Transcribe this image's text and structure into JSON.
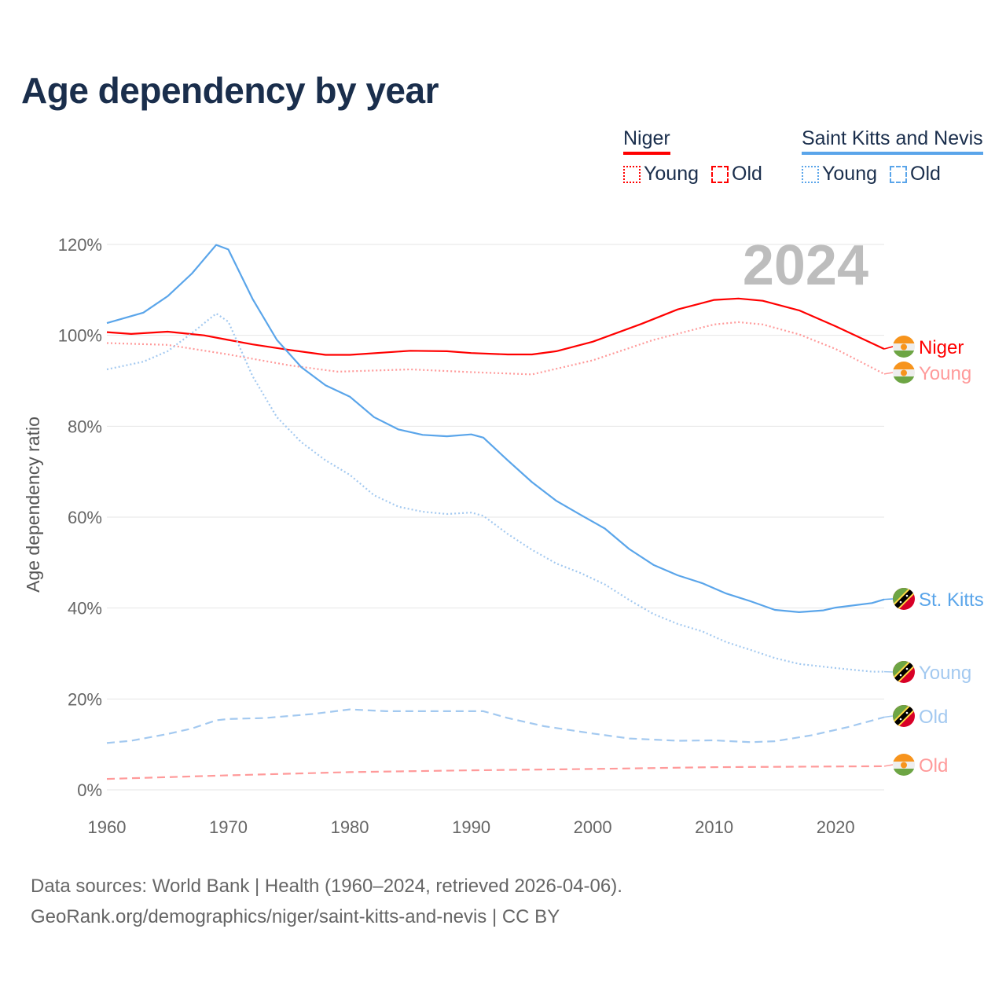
{
  "chart_data": {
    "type": "line",
    "title": "Age dependency by year",
    "xlabel": "",
    "ylabel": "Age dependency ratio",
    "xlim": [
      1960,
      2024
    ],
    "ylim": [
      0,
      120
    ],
    "xticks": [
      1960,
      1970,
      1980,
      1990,
      2000,
      2010,
      2020
    ],
    "yticks": [
      0,
      20,
      40,
      60,
      80,
      100,
      120
    ],
    "ytick_labels": [
      "0%",
      "20%",
      "40%",
      "60%",
      "80%",
      "100%",
      "120%"
    ],
    "xtick_labels": [
      "1960",
      "1970",
      "1980",
      "1990",
      "2000",
      "2010",
      "2020"
    ],
    "year_watermark": "2024",
    "grid": true,
    "legend_placement": "top-right",
    "legend": {
      "groups": [
        {
          "name": "Niger",
          "color": "#ff0000",
          "items": [
            "Young",
            "Old"
          ]
        },
        {
          "name": "Saint Kitts and Nevis",
          "color": "#5aa5ea",
          "items": [
            "Young",
            "Old"
          ]
        }
      ]
    },
    "series": [
      {
        "name": "Niger",
        "country": "niger",
        "kind": "total",
        "end_label": "Niger",
        "color": "#ff0000",
        "points": [
          [
            1960,
            100.7
          ],
          [
            1962,
            100.3
          ],
          [
            1965,
            100.8
          ],
          [
            1968,
            100
          ],
          [
            1970,
            99
          ],
          [
            1972,
            98
          ],
          [
            1975,
            96.8
          ],
          [
            1978,
            95.7
          ],
          [
            1980,
            95.7
          ],
          [
            1985,
            96.6
          ],
          [
            1988,
            96.5
          ],
          [
            1990,
            96.1
          ],
          [
            1993,
            95.8
          ],
          [
            1995,
            95.8
          ],
          [
            1997,
            96.5
          ],
          [
            2000,
            98.6
          ],
          [
            2004,
            102.5
          ],
          [
            2007,
            105.7
          ],
          [
            2010,
            107.8
          ],
          [
            2012,
            108.1
          ],
          [
            2014,
            107.6
          ],
          [
            2017,
            105.5
          ],
          [
            2020,
            102
          ],
          [
            2024,
            97
          ]
        ]
      },
      {
        "name": "Niger Young",
        "country": "niger",
        "kind": "young",
        "end_label": "Young",
        "color": "#ff9a9a",
        "points": [
          [
            1960,
            98.3
          ],
          [
            1965,
            97.9
          ],
          [
            1970,
            95.8
          ],
          [
            1975,
            93.4
          ],
          [
            1979,
            92
          ],
          [
            1985,
            92.5
          ],
          [
            1990,
            91.9
          ],
          [
            1995,
            91.4
          ],
          [
            2000,
            94.5
          ],
          [
            2005,
            99
          ],
          [
            2010,
            102.4
          ],
          [
            2012,
            102.9
          ],
          [
            2014,
            102.4
          ],
          [
            2017,
            100.2
          ],
          [
            2020,
            97
          ],
          [
            2024,
            91.5
          ]
        ]
      },
      {
        "name": "Niger Old",
        "country": "niger",
        "kind": "old",
        "end_label": "Old",
        "color": "#ff9a9a",
        "points": [
          [
            1960,
            2.4
          ],
          [
            1970,
            3.2
          ],
          [
            1980,
            3.9
          ],
          [
            1990,
            4.3
          ],
          [
            2000,
            4.6
          ],
          [
            2010,
            5.0
          ],
          [
            2024,
            5.2
          ]
        ]
      },
      {
        "name": "St. Kitts",
        "country": "skn",
        "kind": "total",
        "end_label": "St. Kitts",
        "color": "#5aa5ea",
        "points": [
          [
            1960,
            102.7
          ],
          [
            1963,
            105
          ],
          [
            1965,
            108.6
          ],
          [
            1967,
            113.6
          ],
          [
            1969,
            119.9
          ],
          [
            1970,
            118.9
          ],
          [
            1972,
            108
          ],
          [
            1974,
            99
          ],
          [
            1976,
            93
          ],
          [
            1978,
            89
          ],
          [
            1980,
            86.5
          ],
          [
            1982,
            82
          ],
          [
            1984,
            79.3
          ],
          [
            1986,
            78.1
          ],
          [
            1988,
            77.8
          ],
          [
            1990,
            78.2
          ],
          [
            1991,
            77.5
          ],
          [
            1993,
            72.5
          ],
          [
            1995,
            67.7
          ],
          [
            1997,
            63.6
          ],
          [
            1999,
            60.5
          ],
          [
            2001,
            57.5
          ],
          [
            2003,
            53
          ],
          [
            2005,
            49.5
          ],
          [
            2007,
            47.2
          ],
          [
            2009,
            45.5
          ],
          [
            2011,
            43.2
          ],
          [
            2013,
            41.5
          ],
          [
            2015,
            39.6
          ],
          [
            2017,
            39.1
          ],
          [
            2019,
            39.5
          ],
          [
            2020,
            40.1
          ],
          [
            2023,
            41.1
          ],
          [
            2024,
            41.9
          ]
        ]
      },
      {
        "name": "St. Kitts Young",
        "country": "skn",
        "kind": "young",
        "end_label": "Young",
        "color": "#a3c9f0",
        "points": [
          [
            1960,
            92.5
          ],
          [
            1963,
            94.2
          ],
          [
            1965,
            96.5
          ],
          [
            1967,
            100.5
          ],
          [
            1969,
            104.8
          ],
          [
            1970,
            103
          ],
          [
            1972,
            91
          ],
          [
            1974,
            82
          ],
          [
            1976,
            76.5
          ],
          [
            1978,
            72.5
          ],
          [
            1980,
            69.3
          ],
          [
            1982,
            64.8
          ],
          [
            1984,
            62.3
          ],
          [
            1986,
            61.2
          ],
          [
            1988,
            60.7
          ],
          [
            1990,
            61
          ],
          [
            1991,
            60.3
          ],
          [
            1993,
            56.3
          ],
          [
            1995,
            52.8
          ],
          [
            1997,
            49.8
          ],
          [
            1999,
            47.7
          ],
          [
            2001,
            45.2
          ],
          [
            2003,
            41.8
          ],
          [
            2005,
            38.7
          ],
          [
            2007,
            36.5
          ],
          [
            2009,
            34.9
          ],
          [
            2011,
            32.5
          ],
          [
            2013,
            30.8
          ],
          [
            2015,
            29
          ],
          [
            2017,
            27.7
          ],
          [
            2020,
            26.8
          ],
          [
            2023,
            26
          ],
          [
            2024,
            26
          ]
        ]
      },
      {
        "name": "St. Kitts Old",
        "country": "skn",
        "kind": "old",
        "end_label": "Old",
        "color": "#a3c9f0",
        "points": [
          [
            1960,
            10.3
          ],
          [
            1962,
            10.8
          ],
          [
            1965,
            12.3
          ],
          [
            1967,
            13.5
          ],
          [
            1969,
            15.3
          ],
          [
            1970,
            15.6
          ],
          [
            1973,
            15.8
          ],
          [
            1977,
            16.7
          ],
          [
            1980,
            17.7
          ],
          [
            1983,
            17.3
          ],
          [
            1988,
            17.3
          ],
          [
            1991,
            17.3
          ],
          [
            1993,
            15.8
          ],
          [
            1996,
            14
          ],
          [
            2000,
            12.4
          ],
          [
            2003,
            11.3
          ],
          [
            2007,
            10.8
          ],
          [
            2010,
            10.9
          ],
          [
            2013,
            10.5
          ],
          [
            2015,
            10.7
          ],
          [
            2018,
            12
          ],
          [
            2021,
            13.8
          ],
          [
            2024,
            16
          ]
        ]
      }
    ]
  },
  "source": {
    "line1": "Data sources: World Bank | Health (1960–2024, retrieved 2026-04-06).",
    "line2": "GeoRank.org/demographics/niger/saint-kitts-and-nevis | CC BY"
  }
}
